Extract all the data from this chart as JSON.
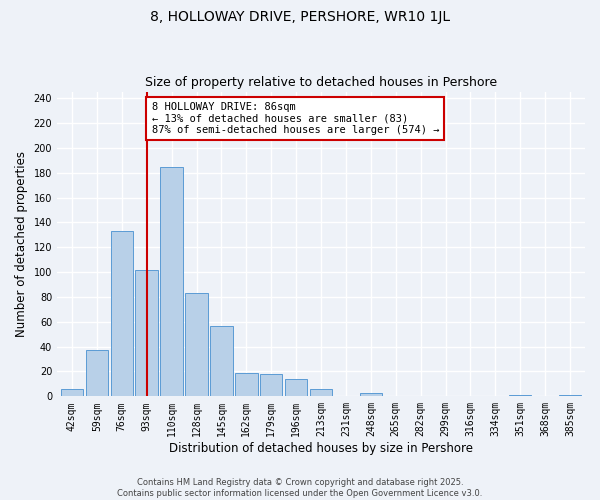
{
  "title": "8, HOLLOWAY DRIVE, PERSHORE, WR10 1JL",
  "subtitle": "Size of property relative to detached houses in Pershore",
  "xlabel": "Distribution of detached houses by size in Pershore",
  "ylabel": "Number of detached properties",
  "bin_labels": [
    "42sqm",
    "59sqm",
    "76sqm",
    "93sqm",
    "110sqm",
    "128sqm",
    "145sqm",
    "162sqm",
    "179sqm",
    "196sqm",
    "213sqm",
    "231sqm",
    "248sqm",
    "265sqm",
    "282sqm",
    "299sqm",
    "316sqm",
    "334sqm",
    "351sqm",
    "368sqm",
    "385sqm"
  ],
  "bar_heights": [
    6,
    37,
    133,
    102,
    185,
    83,
    57,
    19,
    18,
    14,
    6,
    0,
    3,
    0,
    0,
    0,
    0,
    0,
    1,
    0,
    1
  ],
  "bar_color": "#b8d0e8",
  "bar_edge_color": "#5b9bd5",
  "vline_x": 3.0,
  "vline_color": "#cc0000",
  "annotation_text": "8 HOLLOWAY DRIVE: 86sqm\n← 13% of detached houses are smaller (83)\n87% of semi-detached houses are larger (574) →",
  "annotation_box_edgecolor": "#cc0000",
  "annotation_box_facecolor": "#ffffff",
  "ylim": [
    0,
    245
  ],
  "yticks": [
    0,
    20,
    40,
    60,
    80,
    100,
    120,
    140,
    160,
    180,
    200,
    220,
    240
  ],
  "footer_line1": "Contains HM Land Registry data © Crown copyright and database right 2025.",
  "footer_line2": "Contains public sector information licensed under the Open Government Licence v3.0.",
  "bg_color": "#eef2f8",
  "grid_color": "#ffffff",
  "title_fontsize": 10,
  "subtitle_fontsize": 9,
  "axis_label_fontsize": 8.5,
  "tick_fontsize": 7,
  "annotation_fontsize": 7.5,
  "footer_fontsize": 6
}
